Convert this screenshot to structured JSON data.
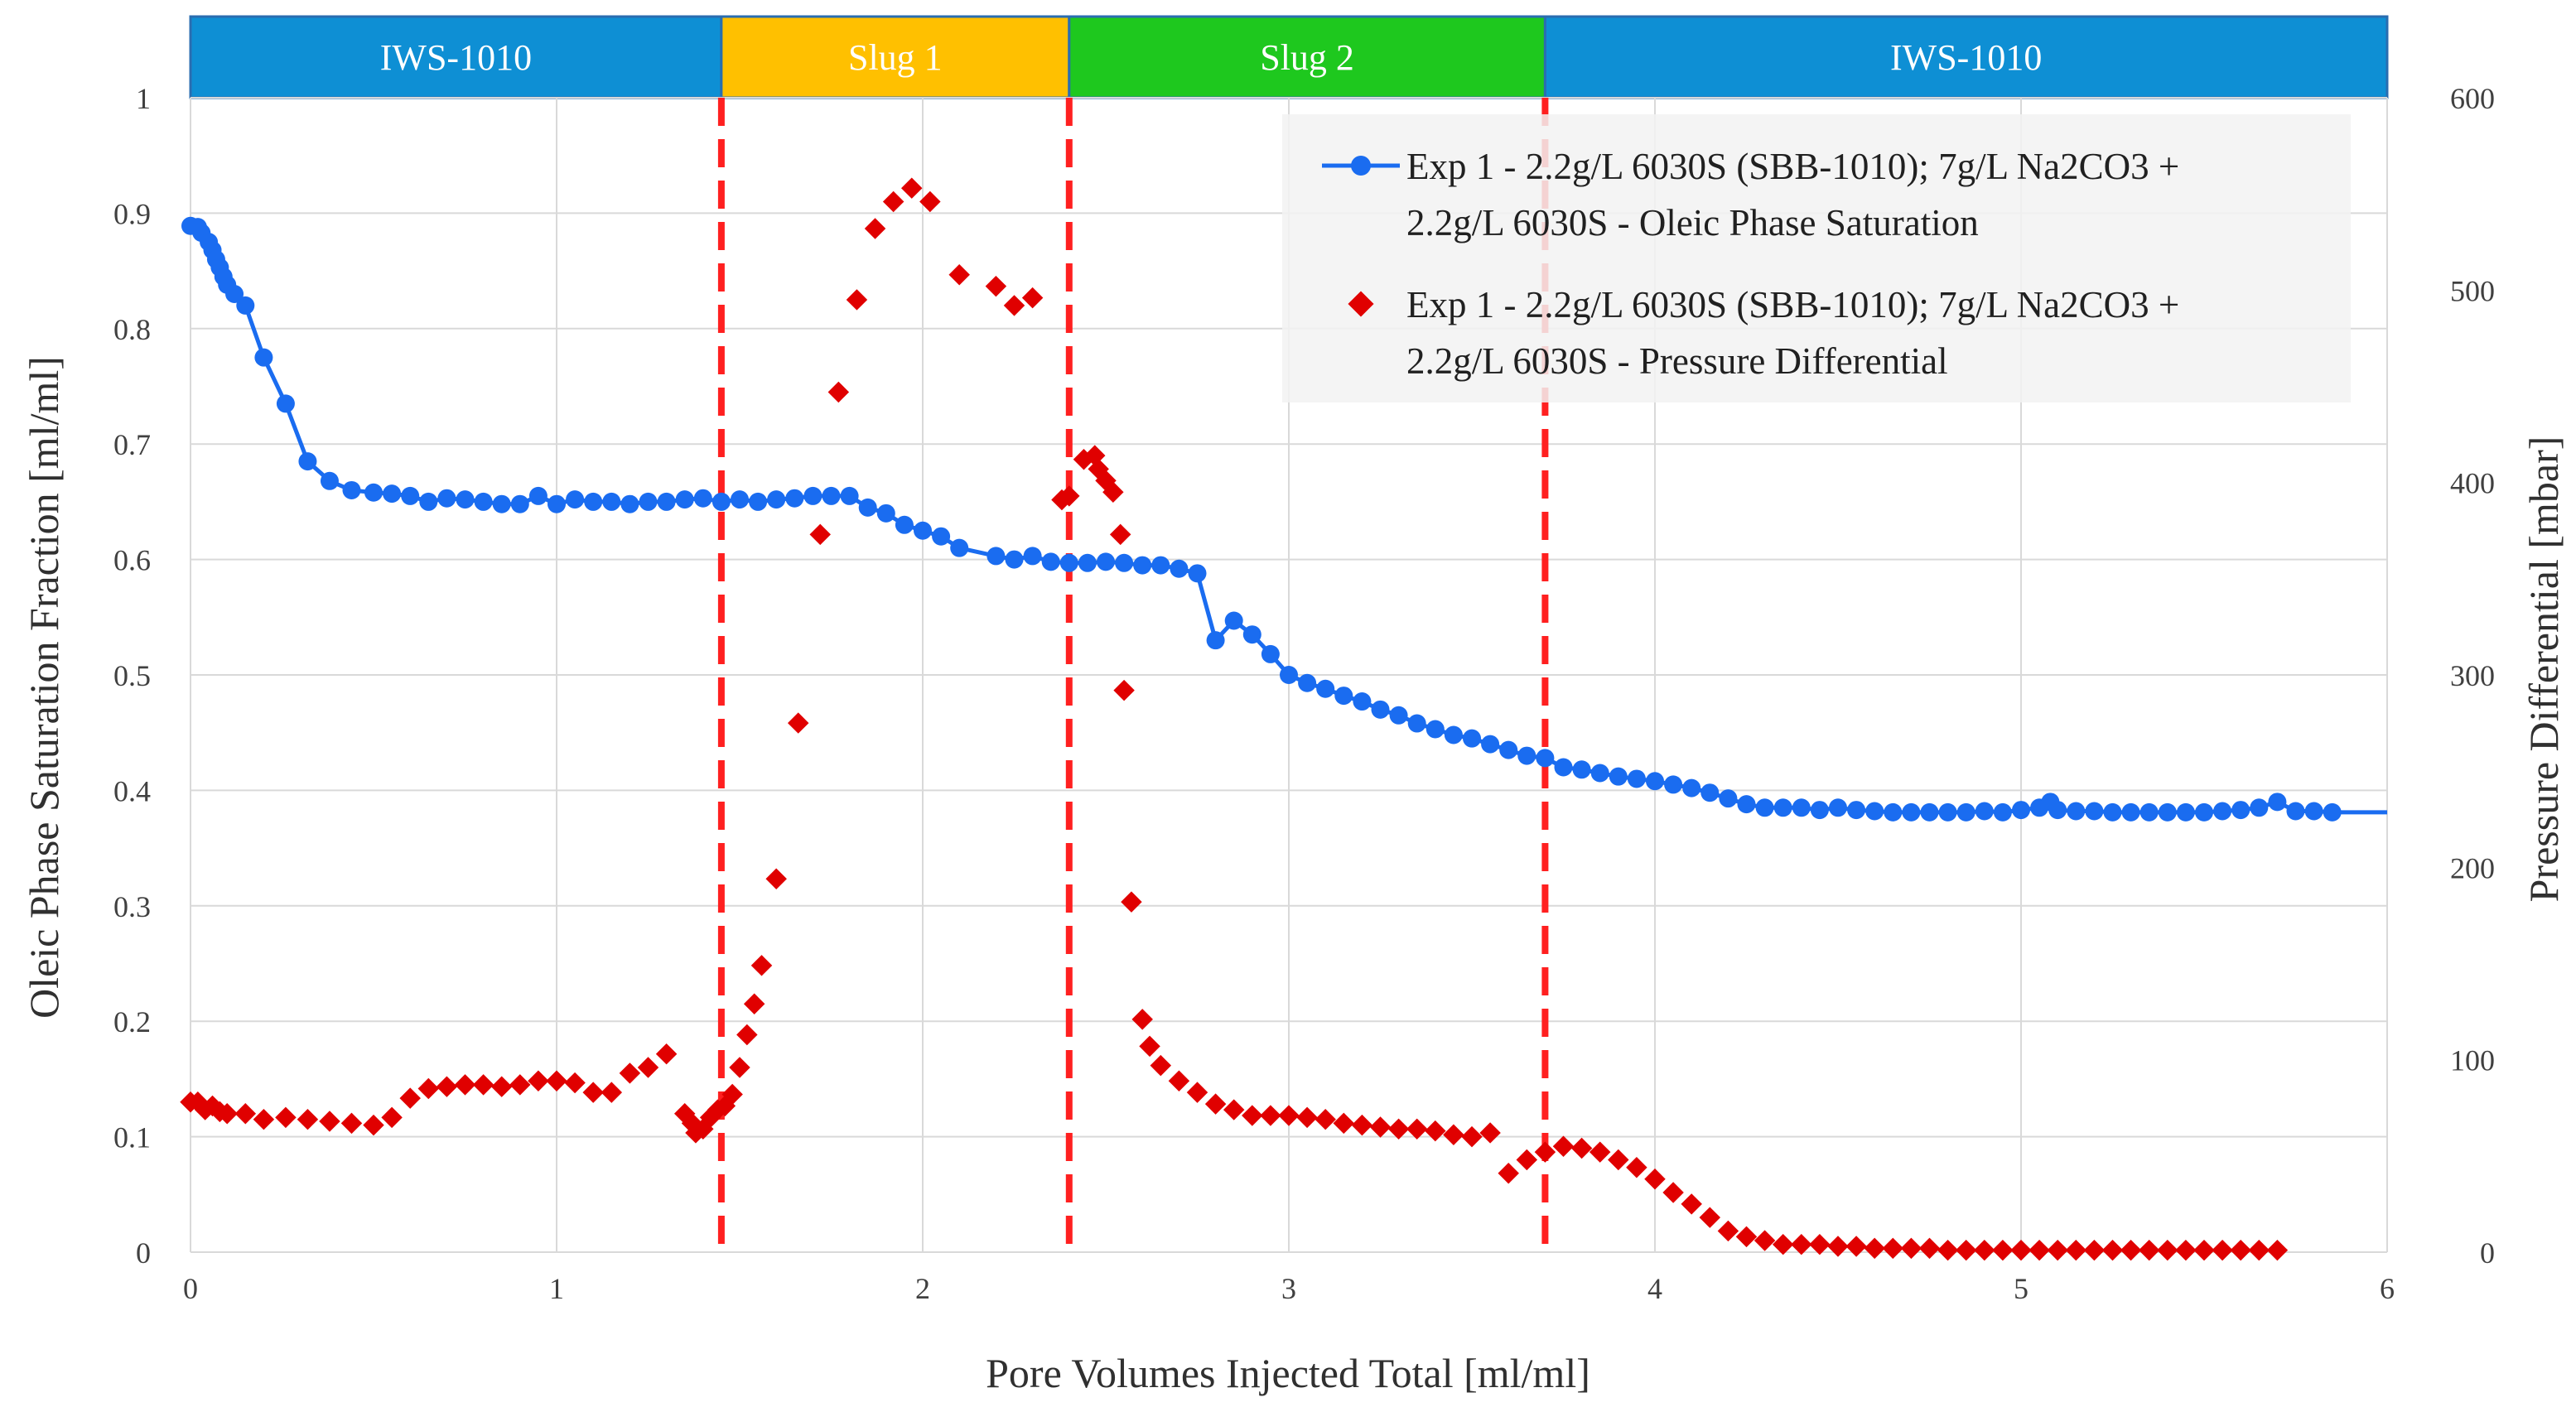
{
  "chart_data": {
    "type": "scatter",
    "xlabel": "Pore Volumes Injected Total [ml/ml]",
    "ylabel": "Oleic Phase Saturation Fraction [ml/ml]",
    "y2label": "Pressure Differential [mbar]",
    "xlim": [
      0,
      6
    ],
    "ylim": [
      0,
      1
    ],
    "y2lim": [
      0,
      600
    ],
    "xticks": [
      0,
      1,
      2,
      3,
      4,
      5,
      6
    ],
    "xtick_labels": [
      "0",
      "1",
      "2",
      "3",
      "4",
      "5",
      "6"
    ],
    "yticks": [
      0,
      0.1,
      0.2,
      0.3,
      0.4,
      0.5,
      0.6,
      0.7,
      0.8,
      0.9,
      1
    ],
    "ytick_labels": [
      "0",
      "0.1",
      "0.2",
      "0.3",
      "0.4",
      "0.5",
      "0.6",
      "0.7",
      "0.8",
      "0.9",
      "1"
    ],
    "y2ticks": [
      0,
      100,
      200,
      300,
      400,
      500,
      600
    ],
    "y2tick_labels": [
      "0",
      "100",
      "200",
      "300",
      "400",
      "500",
      "600"
    ],
    "grid": true,
    "legend_position": "top-right",
    "phases": [
      {
        "label": "IWS-1010",
        "start": 0,
        "end": 1.45,
        "color": "#0e8fd4"
      },
      {
        "label": "Slug 1",
        "start": 1.45,
        "end": 2.4,
        "color": "#ffc000"
      },
      {
        "label": "Slug 2",
        "start": 2.4,
        "end": 3.7,
        "color": "#1ec81e"
      },
      {
        "label": "IWS-1010",
        "start": 3.7,
        "end": 6,
        "color": "#0e8fd4"
      }
    ],
    "boundaries": [
      1.45,
      2.4,
      3.7
    ],
    "boundary_color": "#ff2020",
    "series": [
      {
        "name": "Exp 1 - 2.2g/L 6030S (SBB-1010); 7g/L Na2CO3 + 2.2g/L 6030S - Oleic Phase Saturation",
        "legend_lines": [
          "Exp 1 - 2.2g/L 6030S (SBB-1010); 7g/L Na2CO3 +",
          "2.2g/L 6030S - Oleic Phase Saturation"
        ],
        "axis": "left",
        "style": "line-markers",
        "color": "#1a6cf0",
        "line_extends_to": 6,
        "points": [
          [
            0.0,
            0.889
          ],
          [
            0.02,
            0.888
          ],
          [
            0.03,
            0.883
          ],
          [
            0.05,
            0.875
          ],
          [
            0.06,
            0.868
          ],
          [
            0.07,
            0.86
          ],
          [
            0.08,
            0.853
          ],
          [
            0.09,
            0.845
          ],
          [
            0.1,
            0.838
          ],
          [
            0.12,
            0.83
          ],
          [
            0.15,
            0.82
          ],
          [
            0.2,
            0.775
          ],
          [
            0.26,
            0.735
          ],
          [
            0.32,
            0.685
          ],
          [
            0.38,
            0.668
          ],
          [
            0.44,
            0.66
          ],
          [
            0.5,
            0.658
          ],
          [
            0.55,
            0.657
          ],
          [
            0.6,
            0.655
          ],
          [
            0.65,
            0.65
          ],
          [
            0.7,
            0.653
          ],
          [
            0.75,
            0.652
          ],
          [
            0.8,
            0.65
          ],
          [
            0.85,
            0.648
          ],
          [
            0.9,
            0.648
          ],
          [
            0.95,
            0.655
          ],
          [
            1.0,
            0.648
          ],
          [
            1.05,
            0.652
          ],
          [
            1.1,
            0.65
          ],
          [
            1.15,
            0.65
          ],
          [
            1.2,
            0.648
          ],
          [
            1.25,
            0.65
          ],
          [
            1.3,
            0.65
          ],
          [
            1.35,
            0.652
          ],
          [
            1.4,
            0.653
          ],
          [
            1.45,
            0.65
          ],
          [
            1.5,
            0.652
          ],
          [
            1.55,
            0.65
          ],
          [
            1.6,
            0.652
          ],
          [
            1.65,
            0.653
          ],
          [
            1.7,
            0.655
          ],
          [
            1.75,
            0.655
          ],
          [
            1.8,
            0.655
          ],
          [
            1.85,
            0.645
          ],
          [
            1.9,
            0.64
          ],
          [
            1.95,
            0.63
          ],
          [
            2.0,
            0.625
          ],
          [
            2.05,
            0.62
          ],
          [
            2.1,
            0.61
          ],
          [
            2.2,
            0.603
          ],
          [
            2.25,
            0.6
          ],
          [
            2.3,
            0.603
          ],
          [
            2.35,
            0.598
          ],
          [
            2.4,
            0.597
          ],
          [
            2.45,
            0.597
          ],
          [
            2.5,
            0.598
          ],
          [
            2.55,
            0.597
          ],
          [
            2.6,
            0.595
          ],
          [
            2.65,
            0.595
          ],
          [
            2.7,
            0.592
          ],
          [
            2.75,
            0.588
          ],
          [
            2.8,
            0.53
          ],
          [
            2.85,
            0.547
          ],
          [
            2.9,
            0.535
          ],
          [
            2.95,
            0.518
          ],
          [
            3.0,
            0.5
          ],
          [
            3.05,
            0.493
          ],
          [
            3.1,
            0.488
          ],
          [
            3.15,
            0.482
          ],
          [
            3.2,
            0.477
          ],
          [
            3.25,
            0.47
          ],
          [
            3.3,
            0.465
          ],
          [
            3.35,
            0.458
          ],
          [
            3.4,
            0.453
          ],
          [
            3.45,
            0.448
          ],
          [
            3.5,
            0.445
          ],
          [
            3.55,
            0.44
          ],
          [
            3.6,
            0.435
          ],
          [
            3.65,
            0.43
          ],
          [
            3.7,
            0.428
          ],
          [
            3.75,
            0.42
          ],
          [
            3.8,
            0.418
          ],
          [
            3.85,
            0.415
          ],
          [
            3.9,
            0.412
          ],
          [
            3.95,
            0.41
          ],
          [
            4.0,
            0.408
          ],
          [
            4.05,
            0.405
          ],
          [
            4.1,
            0.402
          ],
          [
            4.15,
            0.398
          ],
          [
            4.2,
            0.393
          ],
          [
            4.25,
            0.388
          ],
          [
            4.3,
            0.385
          ],
          [
            4.35,
            0.385
          ],
          [
            4.4,
            0.385
          ],
          [
            4.45,
            0.383
          ],
          [
            4.5,
            0.385
          ],
          [
            4.55,
            0.383
          ],
          [
            4.6,
            0.382
          ],
          [
            4.65,
            0.381
          ],
          [
            4.7,
            0.381
          ],
          [
            4.75,
            0.381
          ],
          [
            4.8,
            0.381
          ],
          [
            4.85,
            0.381
          ],
          [
            4.9,
            0.382
          ],
          [
            4.95,
            0.381
          ],
          [
            5.0,
            0.383
          ],
          [
            5.05,
            0.385
          ],
          [
            5.08,
            0.39
          ],
          [
            5.1,
            0.383
          ],
          [
            5.15,
            0.382
          ],
          [
            5.2,
            0.382
          ],
          [
            5.25,
            0.381
          ],
          [
            5.3,
            0.381
          ],
          [
            5.35,
            0.381
          ],
          [
            5.4,
            0.381
          ],
          [
            5.45,
            0.381
          ],
          [
            5.5,
            0.381
          ],
          [
            5.55,
            0.382
          ],
          [
            5.6,
            0.383
          ],
          [
            5.65,
            0.385
          ],
          [
            5.7,
            0.39
          ],
          [
            5.75,
            0.382
          ],
          [
            5.8,
            0.382
          ],
          [
            5.85,
            0.381
          ]
        ]
      },
      {
        "name": "Exp 1 - 2.2g/L 6030S (SBB-1010); 7g/L Na2CO3 + 2.2g/L 6030S - Pressure Differential",
        "legend_lines": [
          "Exp 1 - 2.2g/L 6030S (SBB-1010); 7g/L Na2CO3 +",
          "2.2g/L 6030S - Pressure Differential"
        ],
        "axis": "right",
        "style": "markers",
        "color": "#e00000",
        "points": [
          [
            0.0,
            78
          ],
          [
            0.02,
            78
          ],
          [
            0.04,
            74
          ],
          [
            0.06,
            76
          ],
          [
            0.08,
            73
          ],
          [
            0.1,
            72
          ],
          [
            0.15,
            72
          ],
          [
            0.2,
            69
          ],
          [
            0.26,
            70
          ],
          [
            0.32,
            69
          ],
          [
            0.38,
            68
          ],
          [
            0.44,
            67
          ],
          [
            0.5,
            66
          ],
          [
            0.55,
            70
          ],
          [
            0.6,
            80
          ],
          [
            0.65,
            85
          ],
          [
            0.7,
            86
          ],
          [
            0.75,
            87
          ],
          [
            0.8,
            87
          ],
          [
            0.85,
            86
          ],
          [
            0.9,
            87
          ],
          [
            0.95,
            89
          ],
          [
            1.0,
            89
          ],
          [
            1.05,
            88
          ],
          [
            1.1,
            83
          ],
          [
            1.15,
            83
          ],
          [
            1.2,
            93
          ],
          [
            1.25,
            96
          ],
          [
            1.3,
            103
          ],
          [
            1.35,
            72
          ],
          [
            1.37,
            67
          ],
          [
            1.38,
            62
          ],
          [
            1.4,
            64
          ],
          [
            1.42,
            70
          ],
          [
            1.44,
            74
          ],
          [
            1.46,
            76
          ],
          [
            1.48,
            82
          ],
          [
            1.5,
            96
          ],
          [
            1.52,
            113
          ],
          [
            1.54,
            129
          ],
          [
            1.56,
            149
          ],
          [
            1.6,
            194
          ],
          [
            1.66,
            275
          ],
          [
            1.72,
            373
          ],
          [
            1.77,
            447
          ],
          [
            1.82,
            495
          ],
          [
            1.87,
            532
          ],
          [
            1.92,
            546
          ],
          [
            1.97,
            553
          ],
          [
            2.02,
            546
          ],
          [
            2.1,
            508
          ],
          [
            2.2,
            502
          ],
          [
            2.25,
            492
          ],
          [
            2.3,
            496
          ],
          [
            2.38,
            391
          ],
          [
            2.4,
            393
          ],
          [
            2.44,
            412
          ],
          [
            2.47,
            414
          ],
          [
            2.48,
            407
          ],
          [
            2.5,
            401
          ],
          [
            2.52,
            395
          ],
          [
            2.54,
            373
          ],
          [
            2.55,
            292
          ],
          [
            2.57,
            182
          ],
          [
            2.6,
            121
          ],
          [
            2.62,
            107
          ],
          [
            2.65,
            97
          ],
          [
            2.7,
            89
          ],
          [
            2.75,
            83
          ],
          [
            2.8,
            77
          ],
          [
            2.85,
            74
          ],
          [
            2.9,
            71
          ],
          [
            2.95,
            71
          ],
          [
            3.0,
            71
          ],
          [
            3.05,
            70
          ],
          [
            3.1,
            69
          ],
          [
            3.15,
            67
          ],
          [
            3.2,
            66
          ],
          [
            3.25,
            65
          ],
          [
            3.3,
            64
          ],
          [
            3.35,
            64
          ],
          [
            3.4,
            63
          ],
          [
            3.45,
            61
          ],
          [
            3.5,
            60
          ],
          [
            3.55,
            62
          ],
          [
            3.6,
            41
          ],
          [
            3.65,
            48
          ],
          [
            3.7,
            52
          ],
          [
            3.75,
            55
          ],
          [
            3.8,
            54
          ],
          [
            3.85,
            52
          ],
          [
            3.9,
            48
          ],
          [
            3.95,
            44
          ],
          [
            4.0,
            38
          ],
          [
            4.05,
            31
          ],
          [
            4.1,
            25
          ],
          [
            4.15,
            18
          ],
          [
            4.2,
            11
          ],
          [
            4.25,
            8
          ],
          [
            4.3,
            6
          ],
          [
            4.35,
            4
          ],
          [
            4.4,
            4
          ],
          [
            4.45,
            4
          ],
          [
            4.5,
            3
          ],
          [
            4.55,
            3
          ],
          [
            4.6,
            2
          ],
          [
            4.65,
            2
          ],
          [
            4.7,
            2
          ],
          [
            4.75,
            2
          ],
          [
            4.8,
            1
          ],
          [
            4.85,
            1
          ],
          [
            4.9,
            1
          ],
          [
            4.95,
            1
          ],
          [
            5.0,
            1
          ],
          [
            5.05,
            1
          ],
          [
            5.1,
            1
          ],
          [
            5.15,
            1
          ],
          [
            5.2,
            1
          ],
          [
            5.25,
            1
          ],
          [
            5.3,
            1
          ],
          [
            5.35,
            1
          ],
          [
            5.4,
            1
          ],
          [
            5.45,
            1
          ],
          [
            5.5,
            1
          ],
          [
            5.55,
            1
          ],
          [
            5.6,
            1
          ],
          [
            5.65,
            1
          ],
          [
            5.7,
            1
          ]
        ]
      }
    ]
  }
}
